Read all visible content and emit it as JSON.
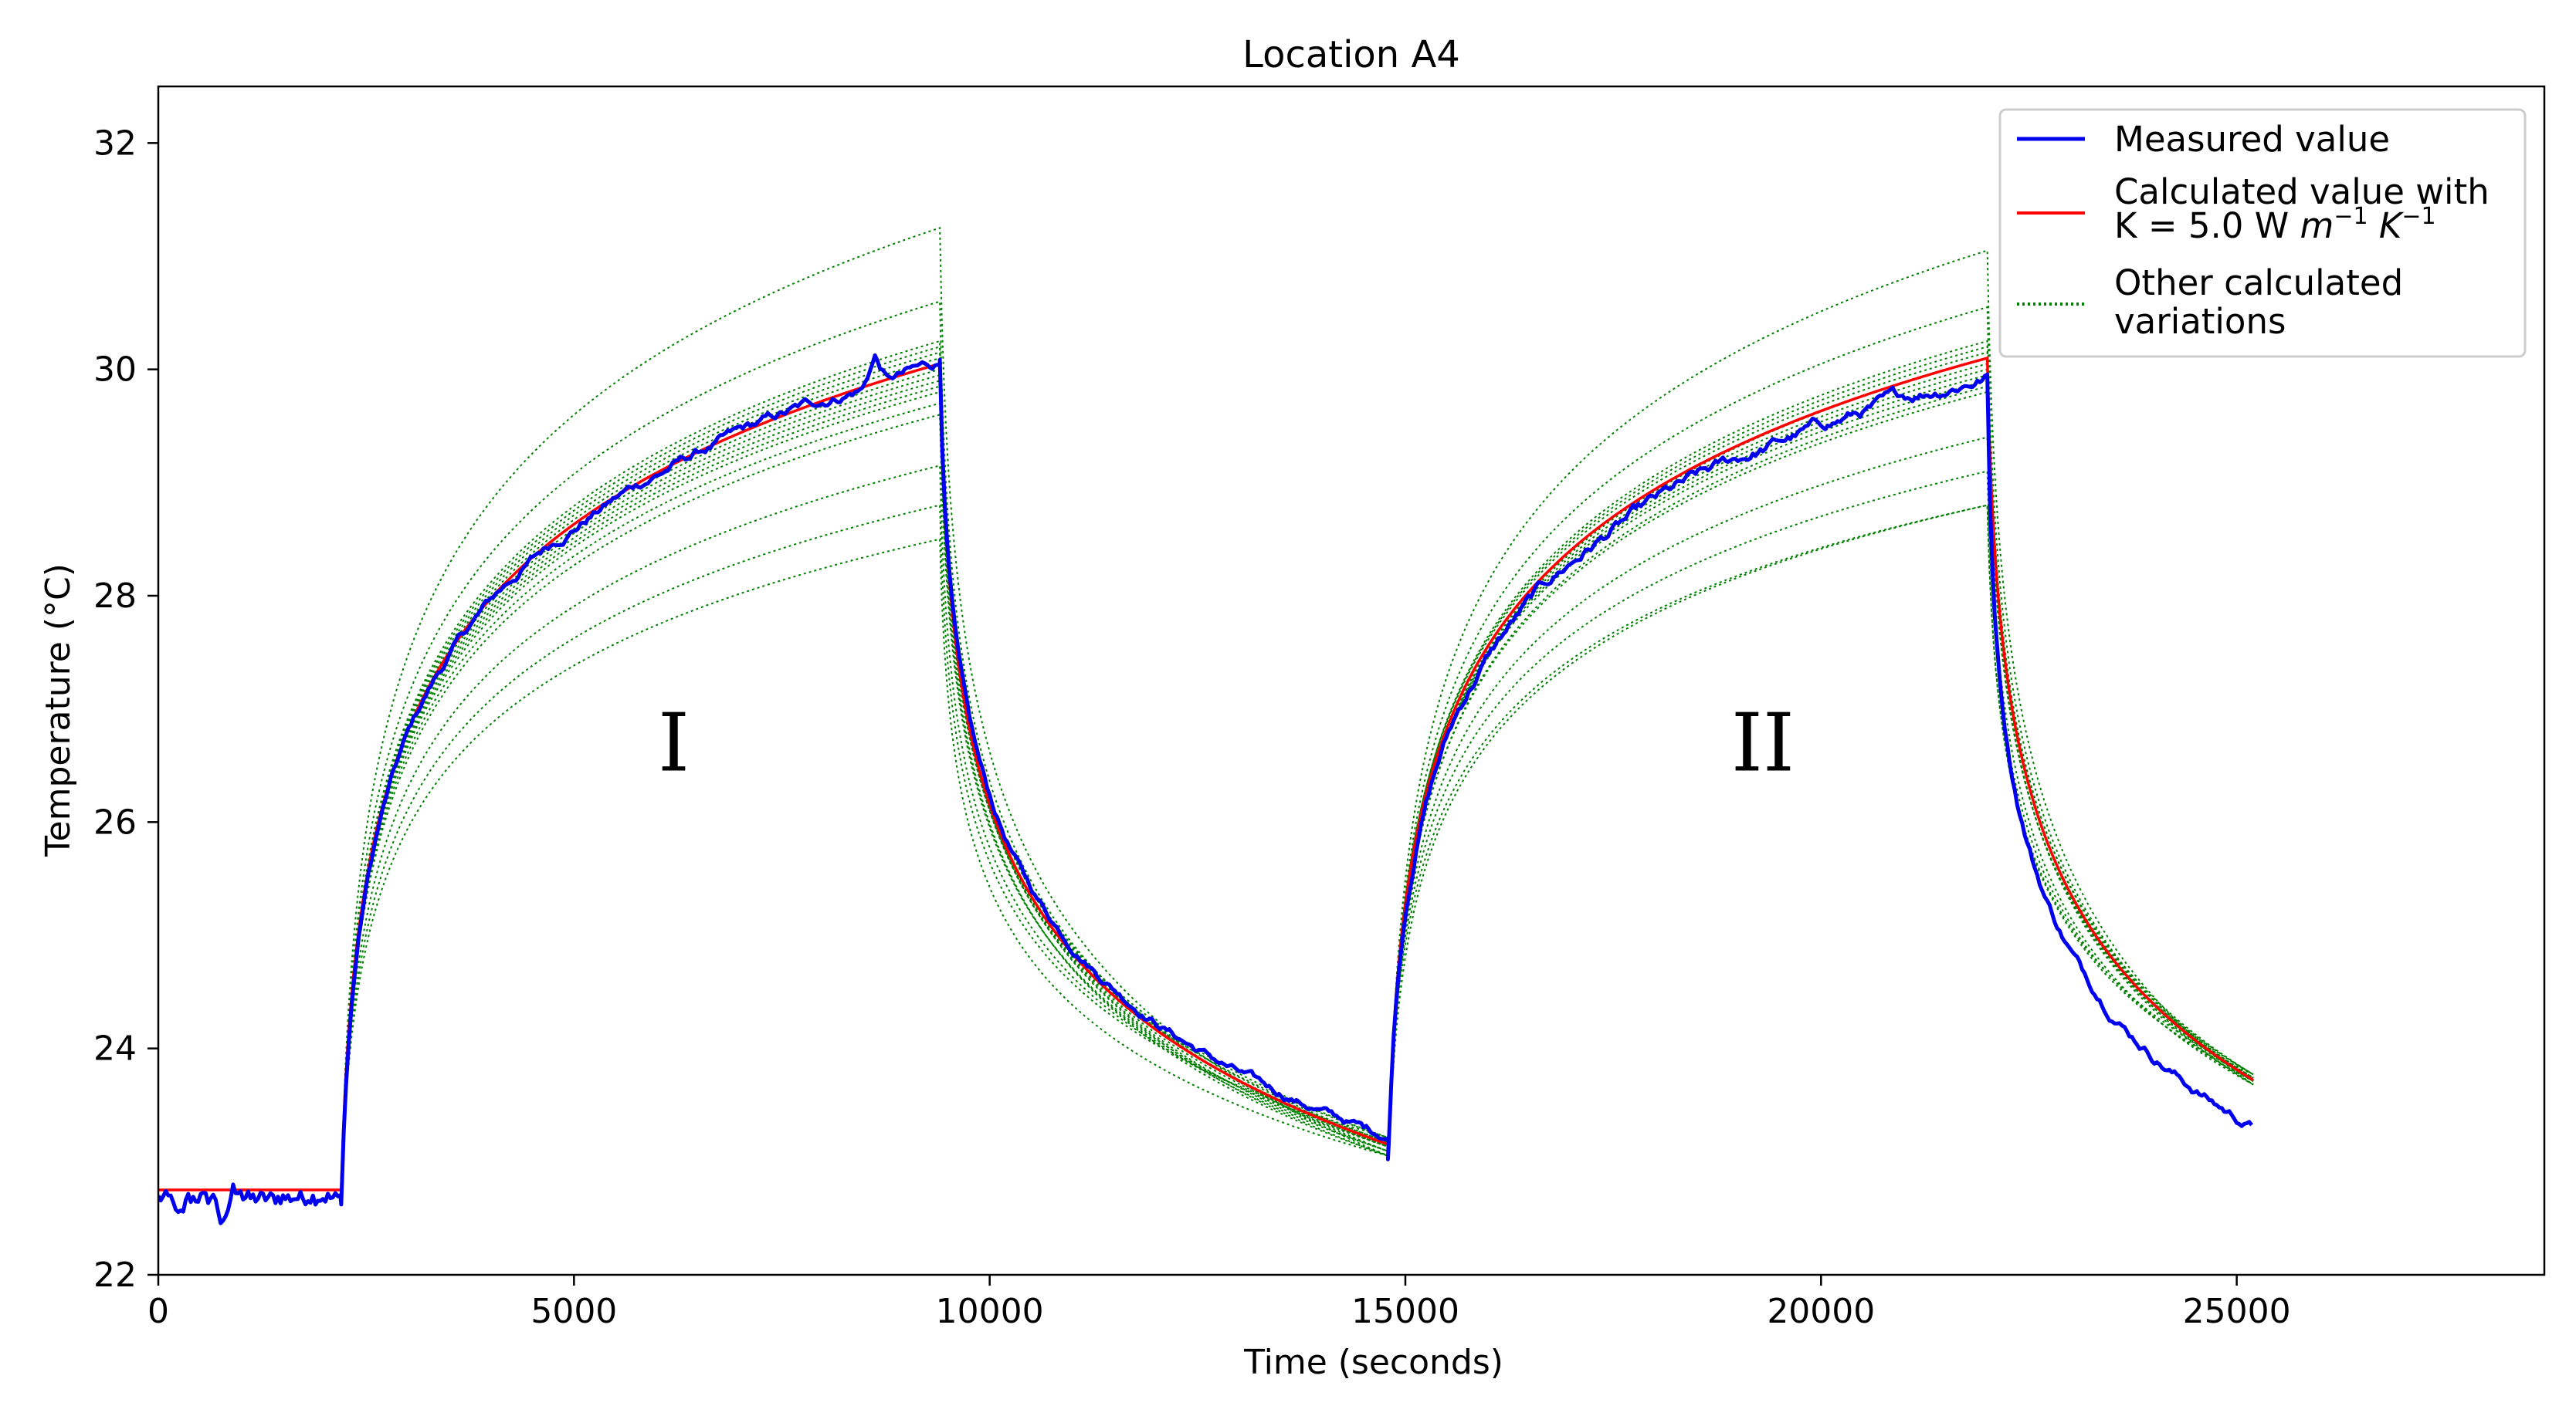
{
  "chart_data": {
    "type": "line",
    "title": "Location A4",
    "xlabel": "Time (seconds)",
    "ylabel": "Temperature (°C)",
    "xlim": [
      0,
      28700
    ],
    "ylim": [
      22,
      32.5
    ],
    "xticks": [
      0,
      5000,
      10000,
      15000,
      20000,
      25000
    ],
    "xtick_labels": [
      "0",
      "5000",
      "10000",
      "15000",
      "20000",
      "25000"
    ],
    "yticks": [
      22,
      24,
      26,
      28,
      30,
      32
    ],
    "ytick_labels": [
      "22",
      "24",
      "26",
      "28",
      "30",
      "32"
    ],
    "grid": false,
    "legend_position": "top-right",
    "legend": [
      {
        "label": "Measured value",
        "style": "solid",
        "color": "#0000ee"
      },
      {
        "label": "Calculated value with",
        "label_line2_prefix": "K = 5.0 W ",
        "label_line2_m": "m",
        "label_line2_exp1": "−1",
        "label_line2_k": "K",
        "label_line2_exp2": "−1",
        "style": "solid",
        "color": "#ff0000"
      },
      {
        "label": "Other calculated",
        "label_line2": "variations",
        "style": "dotted",
        "color": "#008000"
      }
    ],
    "annotations": [
      {
        "text": "I",
        "x": 6200,
        "y": 26.7
      },
      {
        "text": "II",
        "x": 19300,
        "y": 26.7
      }
    ],
    "model": {
      "baseline_temp": 22.75,
      "phases": [
        {
          "start": 2200,
          "end": 9400,
          "type": "heating",
          "step": 3.05,
          "calc_end": 30.05
        },
        {
          "start": 9400,
          "end": 14800,
          "type": "cooling",
          "end_temp": 23.15
        },
        {
          "start": 14800,
          "end": 22000,
          "type": "heating",
          "calc_end": 30.1
        },
        {
          "start": 22000,
          "end": 25200,
          "type": "cooling",
          "end_temp": 23.72
        }
      ],
      "variation_heating_ends_phase1": [
        31.25,
        30.6,
        30.25,
        30.2,
        30.15,
        30.1,
        30.0,
        29.95,
        29.9,
        29.85,
        29.8,
        29.7,
        29.6,
        29.15,
        28.8,
        28.5
      ],
      "variation_heating_ends_phase2": [
        31.05,
        30.55,
        30.25,
        30.2,
        30.15,
        30.1,
        30.05,
        30.0,
        29.95,
        29.9,
        29.85,
        29.8,
        29.4,
        29.1,
        28.8
      ],
      "measured_summary": [
        {
          "x": 0,
          "y": 22.7
        },
        {
          "x": 800,
          "y": 22.3
        },
        {
          "x": 2200,
          "y": 22.65
        },
        {
          "x": 8600,
          "y": 30.2
        },
        {
          "x": 9400,
          "y": 30.0
        },
        {
          "x": 14800,
          "y": 23.1
        },
        {
          "x": 22000,
          "y": 29.95
        },
        {
          "x": 22600,
          "y": 24.5
        },
        {
          "x": 25200,
          "y": 23.3
        }
      ]
    }
  }
}
